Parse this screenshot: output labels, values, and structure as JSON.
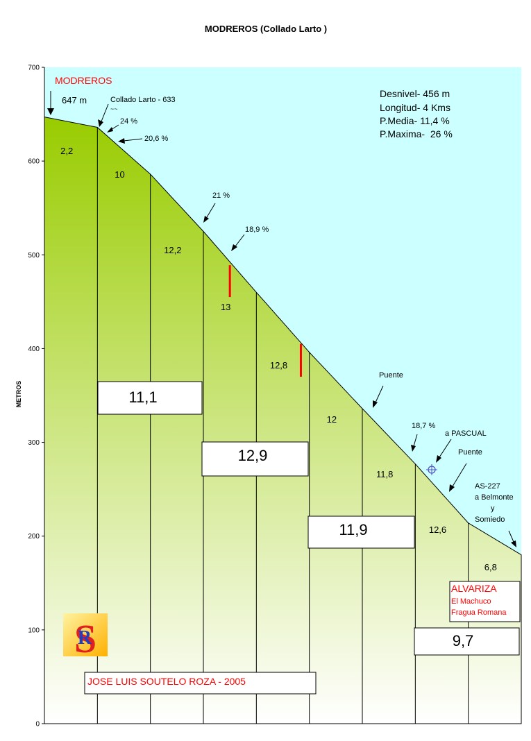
{
  "chart_data": {
    "type": "area",
    "title": "MODREROS (Collado Larto )",
    "ylabel": "METROS",
    "xlabel": "",
    "ylim": [
      0,
      700
    ],
    "xlim": [
      0,
      4.5
    ],
    "yticks": [
      0,
      100,
      200,
      300,
      400,
      500,
      600,
      700
    ],
    "grid": false,
    "fill_colors": {
      "top": "#99cc00",
      "bottom": "#ffffff",
      "sky": "#ccffff"
    },
    "profile": [
      {
        "x": 0.0,
        "y": 647
      },
      {
        "x": 0.5,
        "y": 636
      },
      {
        "x": 1.0,
        "y": 586
      },
      {
        "x": 1.5,
        "y": 525
      },
      {
        "x": 2.0,
        "y": 460
      },
      {
        "x": 2.5,
        "y": 396
      },
      {
        "x": 3.0,
        "y": 336
      },
      {
        "x": 3.5,
        "y": 277
      },
      {
        "x": 4.0,
        "y": 214
      },
      {
        "x": 4.5,
        "y": 180
      }
    ],
    "segment_gradients": [
      "2,2",
      "10",
      "12,2",
      "13",
      "12,8",
      "12",
      "11,8",
      "12,6",
      "6,8"
    ],
    "km_averages": [
      {
        "km": 1,
        "value": "11,1"
      },
      {
        "km": 2,
        "value": "12,9"
      },
      {
        "km": 3,
        "value": "11,9"
      },
      {
        "km": 4,
        "value": "9,7"
      }
    ],
    "stats": [
      "Desnivel- 456 m",
      "Longitud- 4 Kms",
      "P.Media- 11,4 %",
      "P.Maxima-  26 %"
    ],
    "annotations": {
      "start_name": "MODREROS",
      "start_elev": "647 m",
      "collado": "Collado Larto - 633",
      "collado_mark": "~~",
      "pct_24": "24 %",
      "pct_206": "20,6 %",
      "pct_21": "21 %",
      "pct_189": "18,9 %",
      "puente1": "Puente",
      "pct_187": "18,7 %",
      "a_pascual": "a PASCUAL",
      "puente2": "Puente",
      "as227": [
        "AS-227",
        "a Belmonte",
        "y",
        "Somiedo"
      ],
      "end_box": [
        "ALVARIZA",
        "El Machuco",
        "Fragua Romana"
      ],
      "author": "JOSE LUIS SOUTELO ROZA - 2005"
    },
    "steep_marks": [
      {
        "x": 1.75,
        "y_from": 455,
        "y_to": 489
      },
      {
        "x": 2.42,
        "y_from": 370,
        "y_to": 405
      }
    ],
    "colors": {
      "red": "#ff0000",
      "logo_red": "#e02020",
      "logo_blue": "#2040c0",
      "logo_gold": "#ffd23f"
    }
  }
}
